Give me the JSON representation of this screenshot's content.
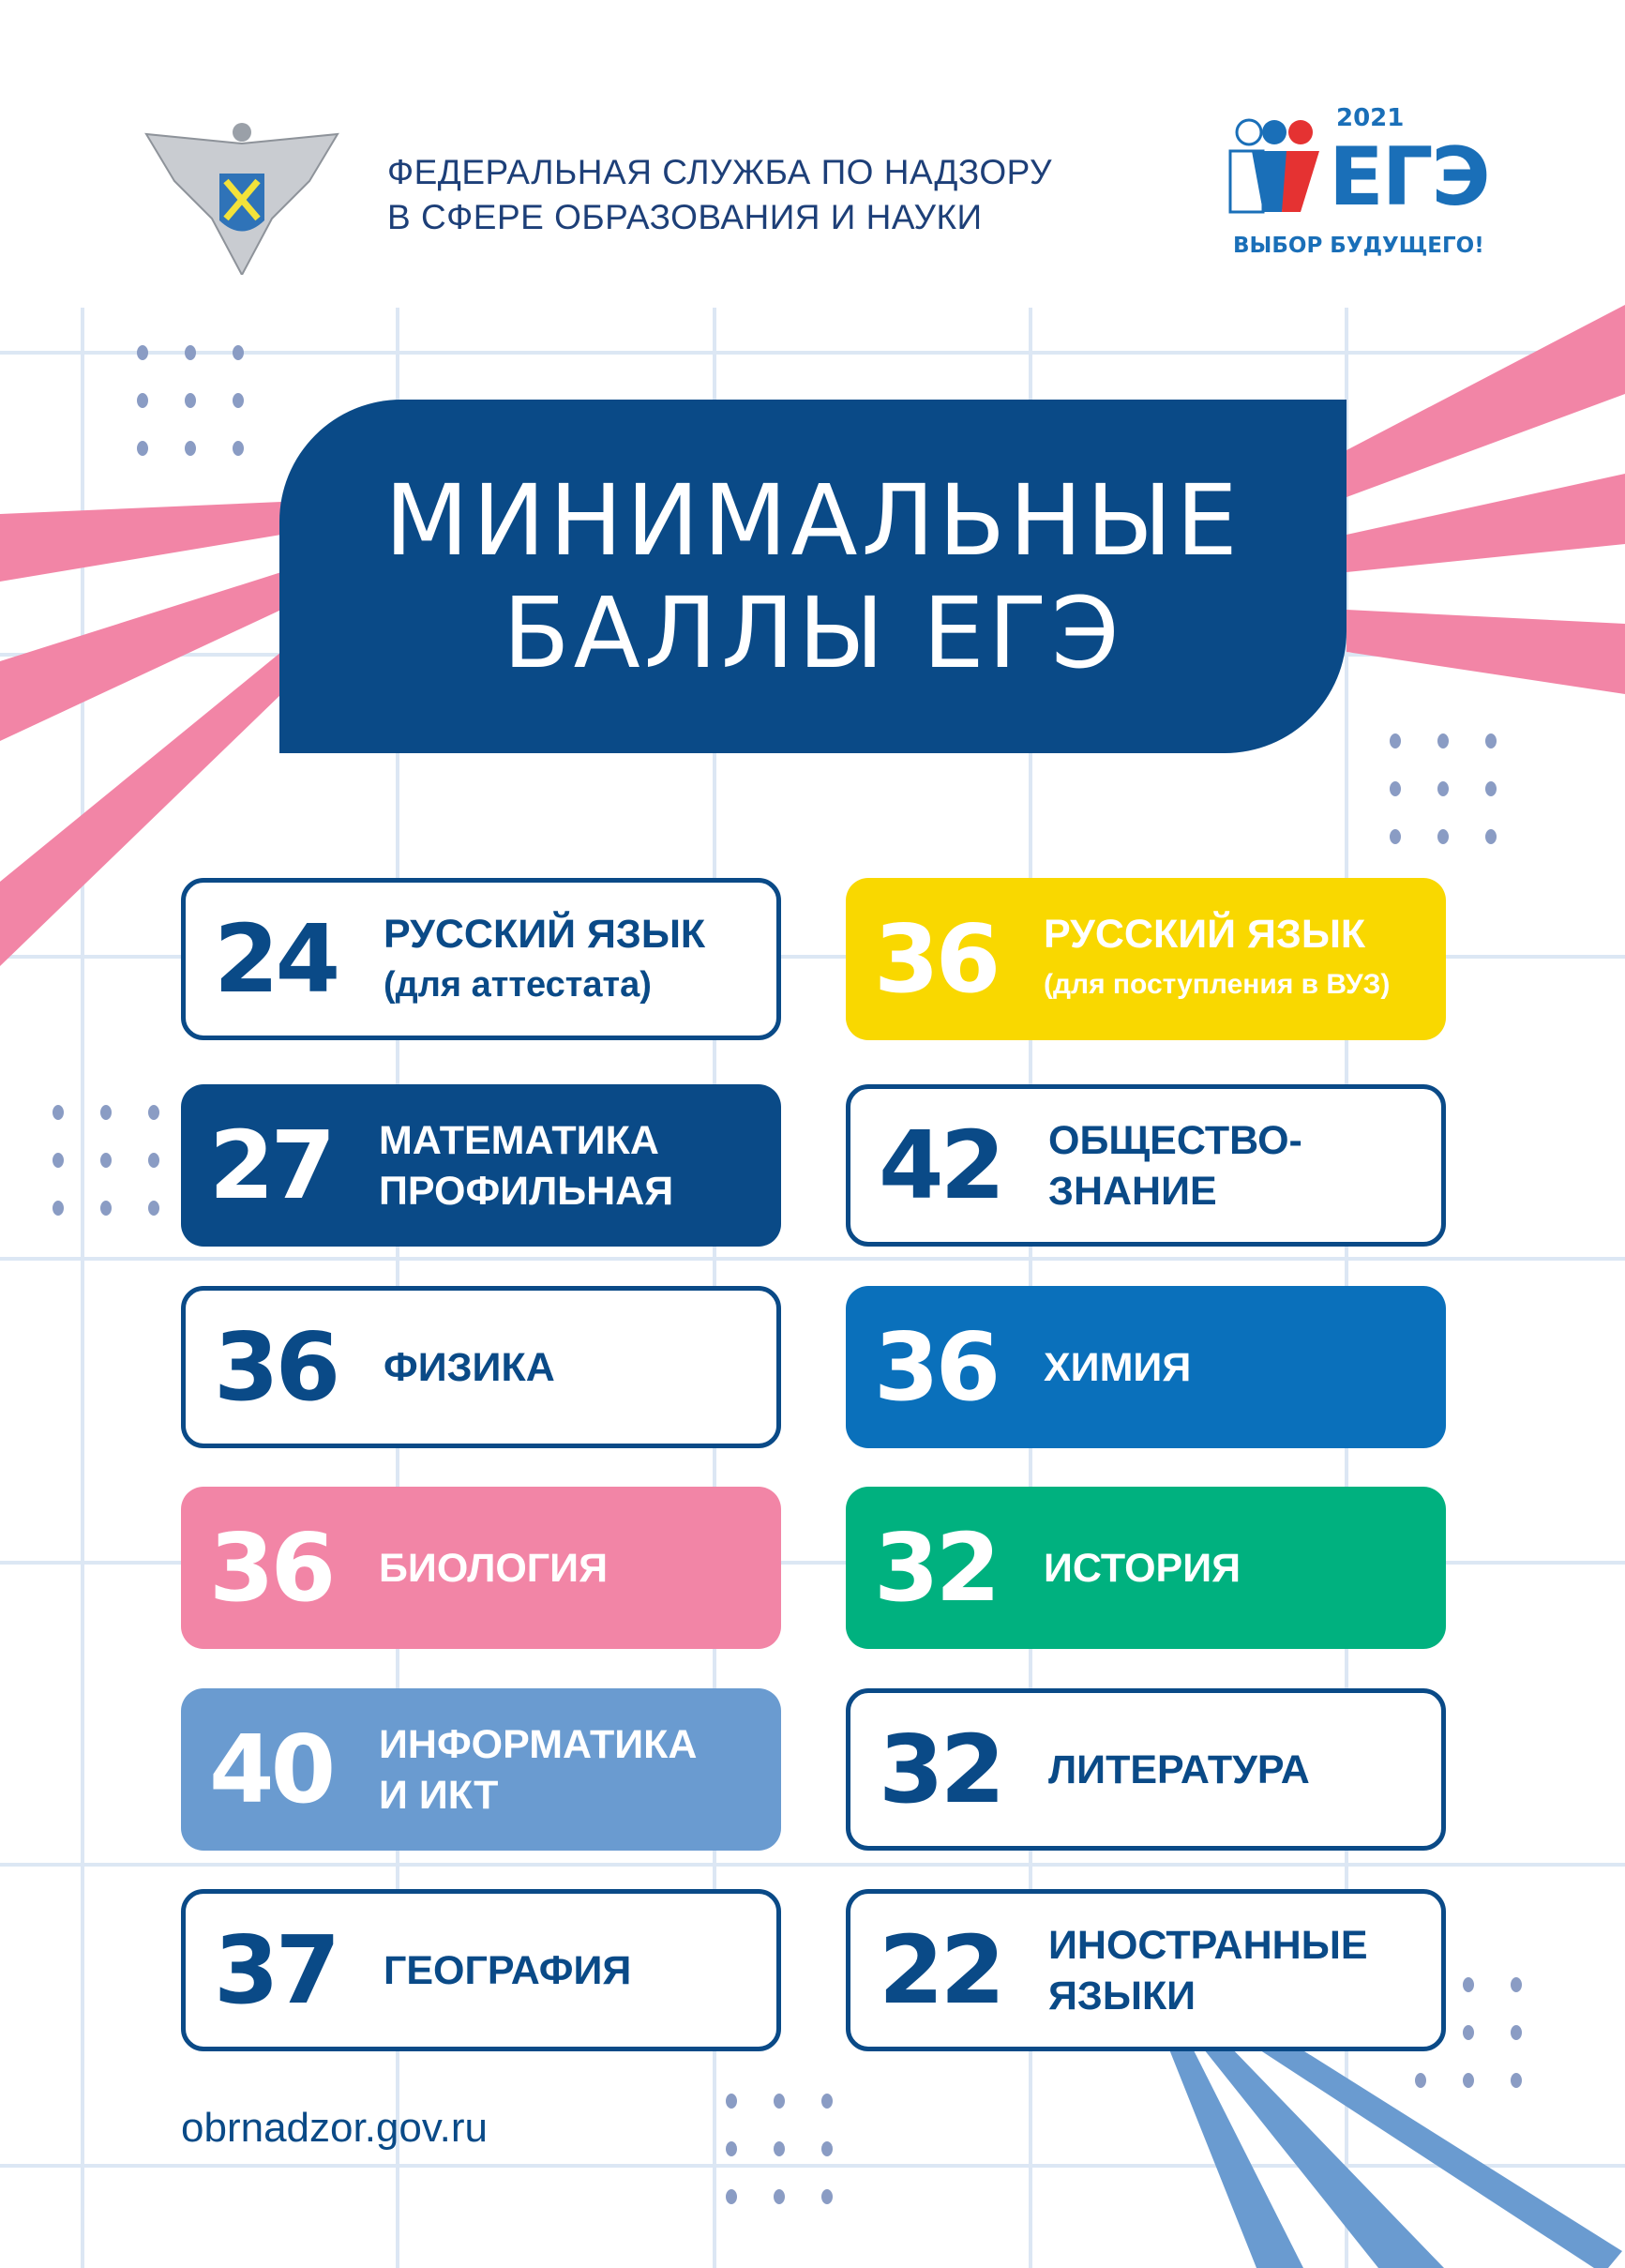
{
  "header": {
    "agency_line1": "ФЕДЕРАЛЬНАЯ СЛУЖБА ПО НАДЗОРУ",
    "agency_line2": "В СФЕРЕ ОБРАЗОВАНИЯ И НАУКИ",
    "agency_emblem_icon": "double-headed-eagle-emblem-icon",
    "ege_logo": {
      "year": "2021",
      "word": "ЕГЭ",
      "slogan": "ВЫБОР БУДУЩЕГО!"
    }
  },
  "title": {
    "line1": "МИНИМАЛЬНЫЕ",
    "line2": "БАЛЛЫ ЕГЭ"
  },
  "subjects": [
    {
      "score": "24",
      "name": "РУССКИЙ ЯЗЫК",
      "note": "(для аттестата)",
      "style": "outline",
      "color": "#0a4a87"
    },
    {
      "score": "36",
      "name": "РУССКИЙ ЯЗЫК",
      "note": "(для поступления в ВУЗ)",
      "style": "filled",
      "color": "#f9d800"
    },
    {
      "score": "27",
      "name": "МАТЕМАТИКА",
      "note": "ПРОФИЛЬНАЯ",
      "style": "filled",
      "color": "#0a4a87"
    },
    {
      "score": "42",
      "name": "ОБЩЕСТВО-",
      "note": "ЗНАНИЕ",
      "style": "outline",
      "color": "#0a4a87"
    },
    {
      "score": "36",
      "name": "ФИЗИКА",
      "style": "outline",
      "color": "#0a4a87"
    },
    {
      "score": "36",
      "name": "ХИМИЯ",
      "style": "filled",
      "color": "#0a70bb"
    },
    {
      "score": "36",
      "name": "БИОЛОГИЯ",
      "style": "filled",
      "color": "#f285a6"
    },
    {
      "score": "32",
      "name": "ИСТОРИЯ",
      "style": "filled",
      "color": "#00b17f"
    },
    {
      "score": "40",
      "name": "ИНФОРМАТИКА",
      "note": "И ИКТ",
      "style": "filled",
      "color": "#6a9bd0"
    },
    {
      "score": "32",
      "name": "ЛИТЕРАТУРА",
      "style": "outline",
      "color": "#0a4a87"
    },
    {
      "score": "37",
      "name": "ГЕОГРАФИЯ",
      "style": "outline",
      "color": "#0a4a87"
    },
    {
      "score": "22",
      "name": "ИНОСТРАННЫЕ",
      "note": "ЯЗЫКИ",
      "style": "outline",
      "color": "#0a4a87"
    }
  ],
  "footer": {
    "url": "obrnadzor.gov.ru"
  },
  "colors": {
    "primary": "#0a4a87",
    "grid": "#dce7f4",
    "pink_rays": "#f285a6",
    "blue_rays": "#6a9bd0",
    "dots": "#8a9cc4"
  }
}
